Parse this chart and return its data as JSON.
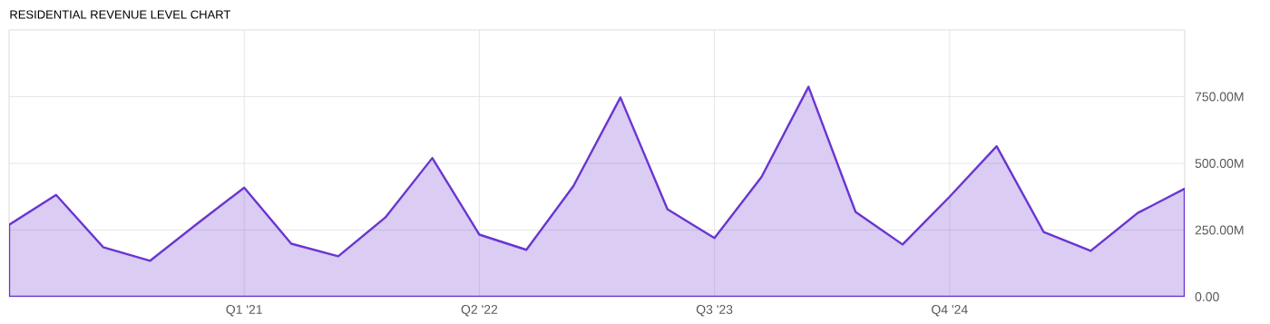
{
  "chart_data": {
    "type": "area",
    "title": "RESIDENTIAL REVENUE LEVEL CHART",
    "categories": [
      null,
      null,
      null,
      null,
      null,
      "Q1 '21",
      null,
      null,
      null,
      null,
      "Q2 '22",
      null,
      null,
      null,
      null,
      "Q3 '23",
      null,
      null,
      null,
      null,
      "Q4 '24",
      null,
      null,
      null,
      null,
      null
    ],
    "series": [
      {
        "color": "#6a35d0",
        "values": [
          270,
          382,
          186,
          135,
          274,
          409,
          199,
          152,
          297,
          520,
          233,
          176,
          415,
          747,
          328,
          220,
          449,
          787,
          318,
          196,
          375,
          564,
          243,
          172,
          314,
          405
        ]
      }
    ],
    "ylim": [
      0,
      1000
    ],
    "yticks": [
      {
        "value": 0,
        "label": "0.00"
      },
      {
        "value": 250,
        "label": "250.00M"
      },
      {
        "value": 500,
        "label": "500.00M"
      },
      {
        "value": 750,
        "label": "750.00M"
      }
    ],
    "grid": true
  }
}
